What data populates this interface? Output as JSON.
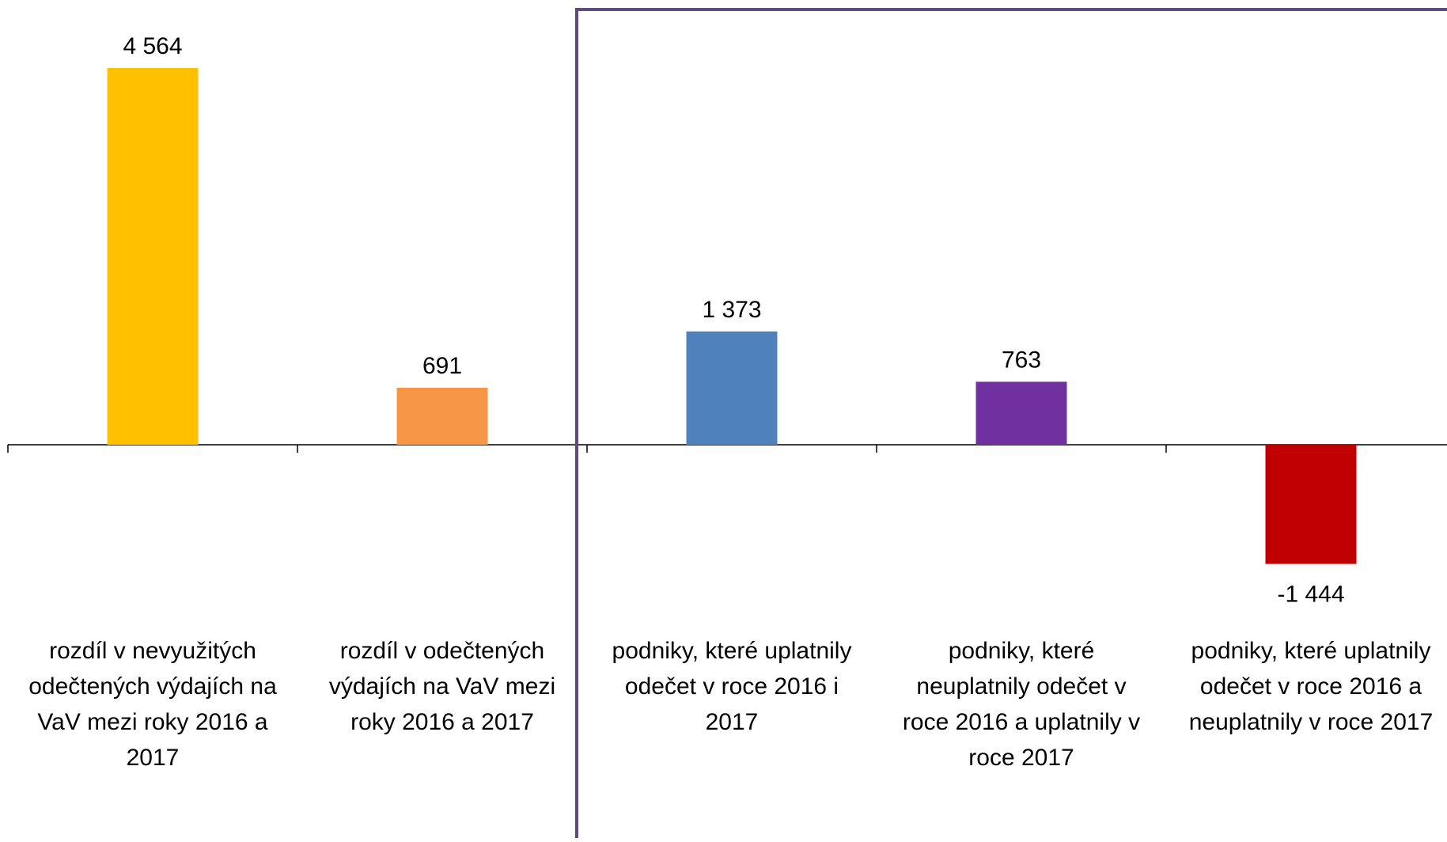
{
  "chart_data": {
    "type": "bar",
    "title": "",
    "xlabel": "",
    "ylabel": "",
    "ylim": [
      -1444,
      4564
    ],
    "grid": false,
    "legend": "none",
    "categories": [
      "rozdíl v nevyužitých odečtených výdajích na VaV mezi roky 2016 a 2017",
      "rozdíl v odečtených výdajích na VaV mezi roky 2016 a 2017",
      "podniky, které uplatnily odečet v roce 2016 i 2017",
      "podniky, které neuplatnily odečet v roce 2016 a uplatnily v roce 2017",
      "podniky, které uplatnily odečet v roce 2016 a neuplatnily v roce 2017"
    ],
    "category_lines": [
      [
        "rozdíl v nevyužitých",
        "odečtených výdajích na",
        "VaV mezi roky 2016 a",
        "2017"
      ],
      [
        "rozdíl v odečtených",
        "výdajích na VaV mezi",
        "roky 2016 a 2017"
      ],
      [
        "podniky, které uplatnily",
        "odečet v roce 2016 i",
        "2017"
      ],
      [
        "podniky, které",
        "neuplatnily odečet v",
        "roce 2016 a uplatnily v",
        "roce 2017"
      ],
      [
        "podniky, které uplatnily",
        "odečet v roce 2016 a",
        "neuplatnily v roce 2017"
      ]
    ],
    "values": [
      4564,
      691,
      1373,
      763,
      -1444
    ],
    "value_labels": [
      "4 564",
      "691",
      "1 373",
      "763",
      "-1 444"
    ],
    "colors": [
      "#FFC000",
      "#F79646",
      "#4F81BD",
      "#7030A0",
      "#C00000"
    ],
    "divider_color": "#604A7B",
    "axis_color": "#000000"
  }
}
